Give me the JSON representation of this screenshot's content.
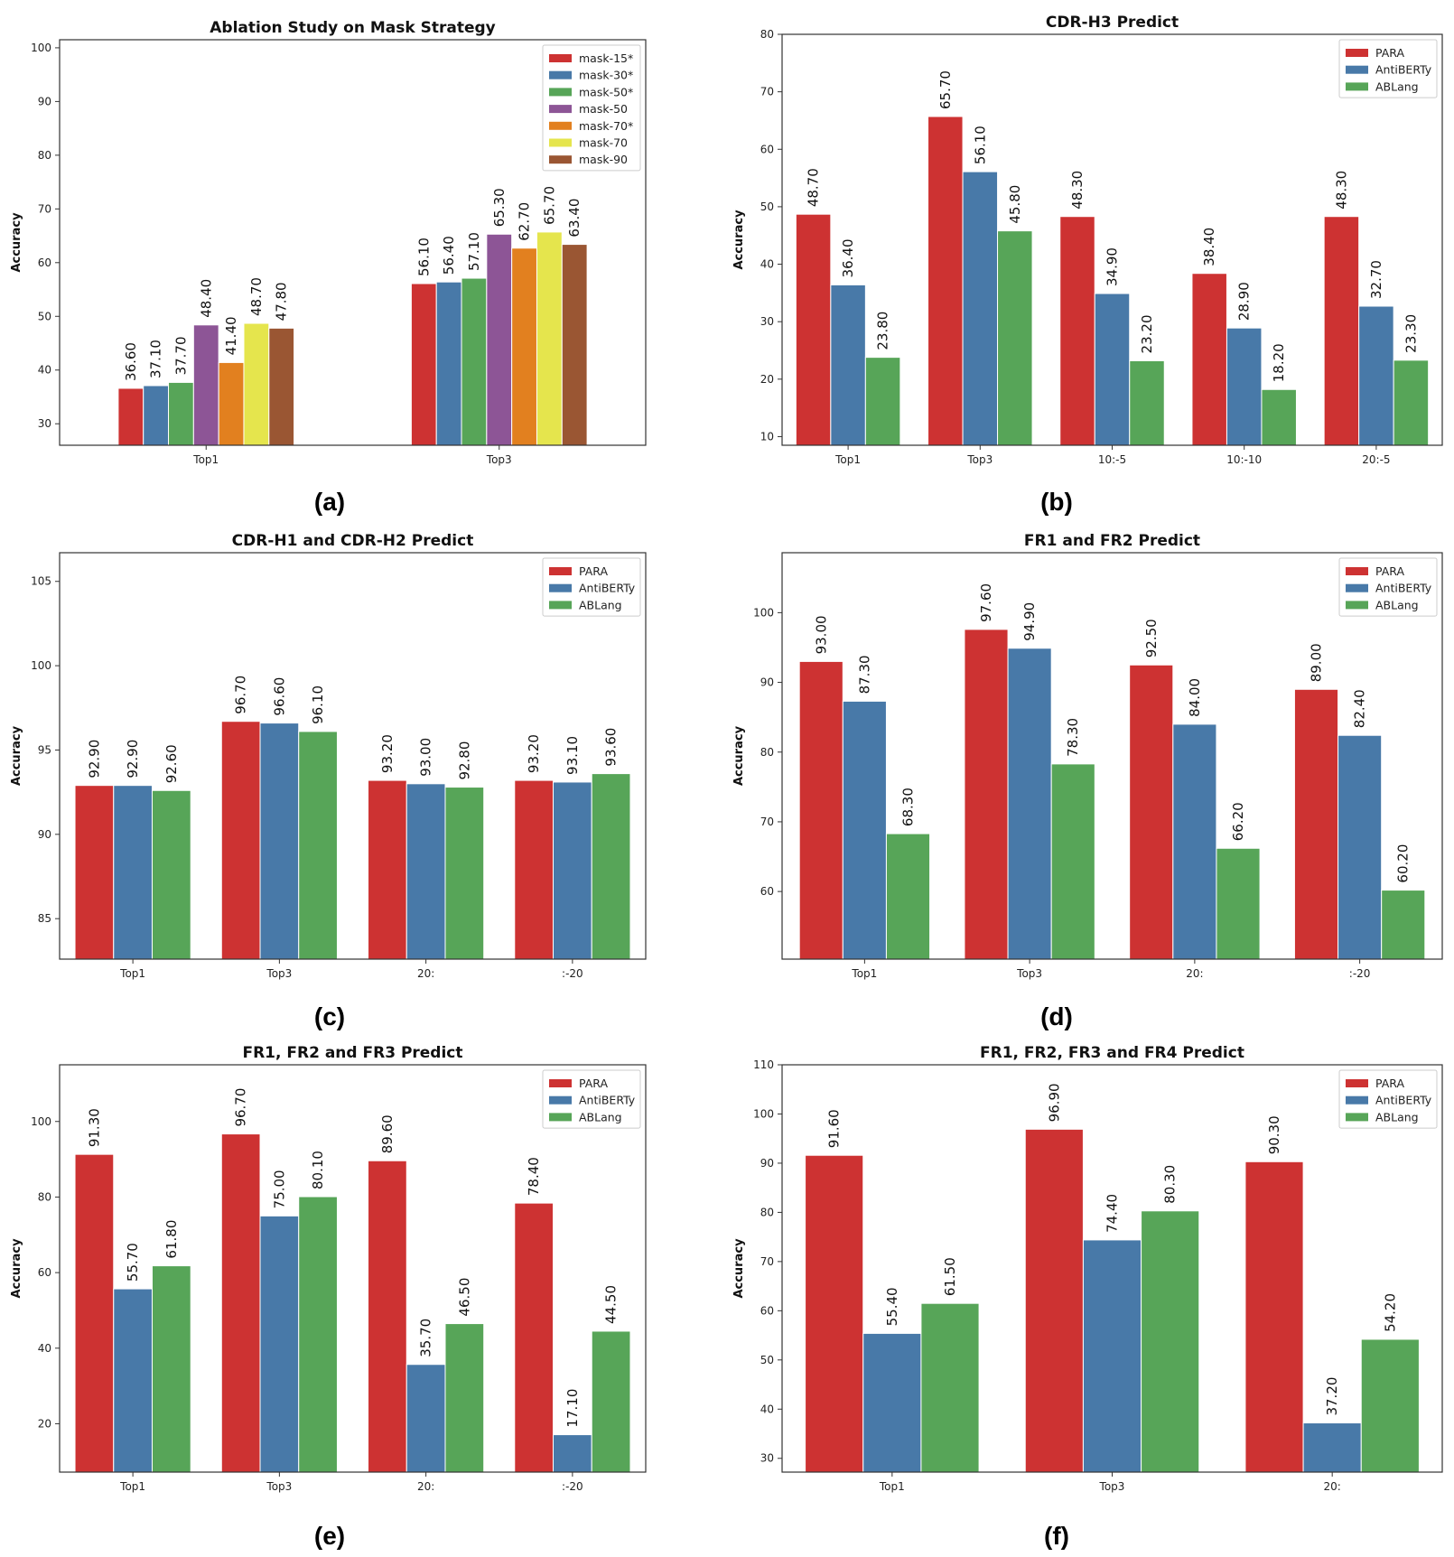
{
  "colors": {
    "red": "#cd3232",
    "blue": "#4879a8",
    "green": "#57a558",
    "purple": "#8d5596",
    "orange": "#e2801f",
    "yellow": "#e5e54d",
    "brown": "#9a5633"
  },
  "chart_data": [
    {
      "label": "(a)",
      "type": "bar",
      "title": "Ablation Study on Mask Strategy",
      "xlabel": "",
      "ylabel": "Accuracy",
      "ylim": [
        26,
        101.5
      ],
      "yticks": [
        30,
        40,
        50,
        60,
        70,
        80,
        90,
        100
      ],
      "legend_position": "top-right",
      "categories": [
        "Top1",
        "Top3"
      ],
      "series": [
        {
          "name": "mask-15*",
          "color": "red",
          "values": [
            36.6,
            56.1
          ],
          "labels": [
            "36.60",
            "56.10"
          ]
        },
        {
          "name": "mask-30*",
          "color": "blue",
          "values": [
            37.1,
            56.4
          ],
          "labels": [
            "37.10",
            "56.40"
          ]
        },
        {
          "name": "mask-50*",
          "color": "green",
          "values": [
            37.7,
            57.1
          ],
          "labels": [
            "37.70",
            "57.10"
          ]
        },
        {
          "name": "mask-50",
          "color": "purple",
          "values": [
            48.4,
            65.3
          ],
          "labels": [
            "48.40",
            "65.30"
          ]
        },
        {
          "name": "mask-70*",
          "color": "orange",
          "values": [
            41.4,
            62.7
          ],
          "labels": [
            "41.40",
            "62.70"
          ]
        },
        {
          "name": "mask-70",
          "color": "yellow",
          "values": [
            48.7,
            65.7
          ],
          "labels": [
            "48.70",
            "65.70"
          ]
        },
        {
          "name": "mask-90",
          "color": "brown",
          "values": [
            47.8,
            63.4
          ],
          "labels": [
            "47.80",
            "63.40"
          ]
        }
      ]
    },
    {
      "label": "(b)",
      "type": "bar",
      "title": "CDR-H3 Predict",
      "xlabel": "",
      "ylabel": "Accuracy",
      "ylim": [
        8.5,
        80
      ],
      "yticks": [
        10,
        20,
        30,
        40,
        50,
        60,
        70,
        80
      ],
      "legend_position": "top-right",
      "categories": [
        "Top1",
        "Top3",
        "10:-5",
        "10:-10",
        "20:-5"
      ],
      "series": [
        {
          "name": "PARA",
          "color": "red",
          "values": [
            48.7,
            65.7,
            48.3,
            38.4,
            48.3
          ],
          "labels": [
            "48.70",
            "65.70",
            "48.30",
            "38.40",
            "48.30"
          ]
        },
        {
          "name": "AntiBERTy",
          "color": "blue",
          "values": [
            36.4,
            56.1,
            34.9,
            28.9,
            32.7
          ],
          "labels": [
            "36.40",
            "56.10",
            "34.90",
            "28.90",
            "32.70"
          ]
        },
        {
          "name": "ABLang",
          "color": "green",
          "values": [
            23.8,
            45.8,
            23.2,
            18.2,
            23.3
          ],
          "labels": [
            "23.80",
            "45.80",
            "23.20",
            "18.20",
            "23.30"
          ]
        }
      ]
    },
    {
      "label": "(c)",
      "type": "bar",
      "title": "CDR-H1 and CDR-H2 Predict",
      "xlabel": "",
      "ylabel": "Accuracy",
      "ylim": [
        82.6,
        106.7
      ],
      "yticks": [
        85,
        90,
        95,
        100,
        105
      ],
      "legend_position": "top-right",
      "categories": [
        "Top1",
        "Top3",
        "20:",
        ":-20"
      ],
      "series": [
        {
          "name": "PARA",
          "color": "red",
          "values": [
            92.9,
            96.7,
            93.2,
            93.2
          ],
          "labels": [
            "92.90",
            "96.70",
            "93.20",
            "93.20"
          ]
        },
        {
          "name": "AntiBERTy",
          "color": "blue",
          "values": [
            92.9,
            96.6,
            93.0,
            93.1
          ],
          "labels": [
            "92.90",
            "96.60",
            "93.00",
            "93.10"
          ]
        },
        {
          "name": "ABLang",
          "color": "green",
          "values": [
            92.6,
            96.1,
            92.8,
            93.6
          ],
          "labels": [
            "92.60",
            "96.10",
            "92.80",
            "93.60"
          ]
        }
      ]
    },
    {
      "label": "(d)",
      "type": "bar",
      "title": "FR1 and FR2 Predict",
      "xlabel": "",
      "ylabel": "Accuracy",
      "ylim": [
        50.3,
        108.6
      ],
      "yticks": [
        60,
        70,
        80,
        90,
        100
      ],
      "legend_position": "top-right",
      "categories": [
        "Top1",
        "Top3",
        "20:",
        ":-20"
      ],
      "series": [
        {
          "name": "PARA",
          "color": "red",
          "values": [
            93.0,
            97.6,
            92.5,
            89.0
          ],
          "labels": [
            "93.00",
            "97.60",
            "92.50",
            "89.00"
          ]
        },
        {
          "name": "AntiBERTy",
          "color": "blue",
          "values": [
            87.3,
            94.9,
            84.0,
            82.4
          ],
          "labels": [
            "87.30",
            "94.90",
            "84.00",
            "82.40"
          ]
        },
        {
          "name": "ABLang",
          "color": "green",
          "values": [
            68.3,
            78.3,
            66.2,
            60.2
          ],
          "labels": [
            "68.30",
            "78.30",
            "66.20",
            "60.20"
          ]
        }
      ]
    },
    {
      "label": "(e)",
      "type": "bar",
      "title": "FR1, FR2 and FR3 Predict",
      "xlabel": "",
      "ylabel": "Accuracy",
      "ylim": [
        7.2,
        115
      ],
      "yticks": [
        20,
        40,
        60,
        80,
        100
      ],
      "legend_position": "top-right",
      "categories": [
        "Top1",
        "Top3",
        "20:",
        ":-20"
      ],
      "series": [
        {
          "name": "PARA",
          "color": "red",
          "values": [
            91.3,
            96.7,
            89.6,
            78.4
          ],
          "labels": [
            "91.30",
            "96.70",
            "89.60",
            "78.40"
          ]
        },
        {
          "name": "AntiBERTy",
          "color": "blue",
          "values": [
            55.7,
            75.0,
            35.7,
            17.1
          ],
          "labels": [
            "55.70",
            "75.00",
            "35.70",
            "17.10"
          ]
        },
        {
          "name": "ABLang",
          "color": "green",
          "values": [
            61.8,
            80.1,
            46.5,
            44.5
          ],
          "labels": [
            "61.80",
            "80.10",
            "46.50",
            "44.50"
          ]
        }
      ]
    },
    {
      "label": "(f)",
      "type": "bar",
      "title": "FR1, FR2, FR3 and FR4 Predict",
      "xlabel": "",
      "ylabel": "Accuracy",
      "ylim": [
        27.2,
        110
      ],
      "yticks": [
        30,
        40,
        50,
        60,
        70,
        80,
        90,
        100,
        110
      ],
      "legend_position": "top-right",
      "categories": [
        "Top1",
        "Top3",
        "20:"
      ],
      "series": [
        {
          "name": "PARA",
          "color": "red",
          "values": [
            91.6,
            96.9,
            90.3
          ],
          "labels": [
            "91.60",
            "96.90",
            "90.30"
          ]
        },
        {
          "name": "AntiBERTy",
          "color": "blue",
          "values": [
            55.4,
            74.4,
            37.2
          ],
          "labels": [
            "55.40",
            "74.40",
            "37.20"
          ]
        },
        {
          "name": "ABLang",
          "color": "green",
          "values": [
            61.5,
            80.3,
            54.2
          ],
          "labels": [
            "61.50",
            "80.30",
            "54.20"
          ]
        }
      ]
    }
  ]
}
